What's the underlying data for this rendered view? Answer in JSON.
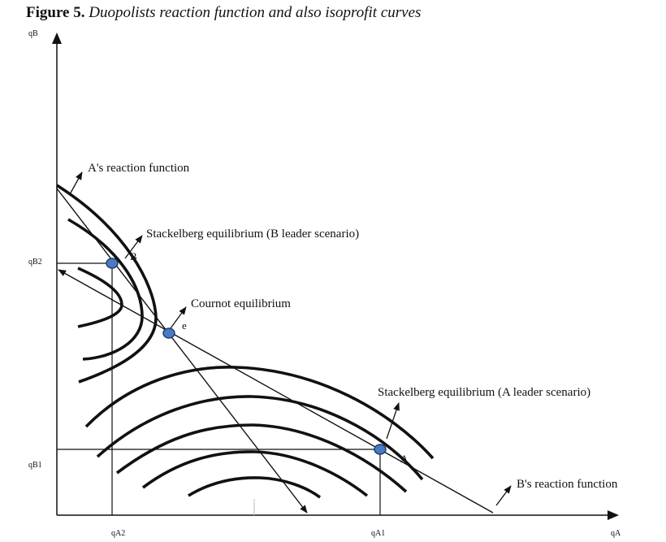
{
  "figure": {
    "number": "Figure 5.",
    "caption": "Duopolists reaction function and also isoprofit curves"
  },
  "axes": {
    "y_label": "qB",
    "x_label": "qA"
  },
  "ticks": {
    "qB2": "qB2",
    "qB1": "qB1",
    "qA2": "qA2",
    "qA1": "qA1"
  },
  "annotations": {
    "a_reaction": "A's reaction function",
    "b_reaction": "B's reaction function",
    "stackelberg_b": "Stackelberg equilibrium (B leader scenario)",
    "cournot": "Cournot equilibrium",
    "stackelberg_a": "Stackelberg equilibrium (A leader scenario)"
  },
  "points": {
    "b": "B",
    "e": "e",
    "a": "A"
  },
  "colors": {
    "line": "#111111",
    "equilibrium_point": "#4a7ac0",
    "equilibrium_point_stroke": "#1f3f73"
  }
}
